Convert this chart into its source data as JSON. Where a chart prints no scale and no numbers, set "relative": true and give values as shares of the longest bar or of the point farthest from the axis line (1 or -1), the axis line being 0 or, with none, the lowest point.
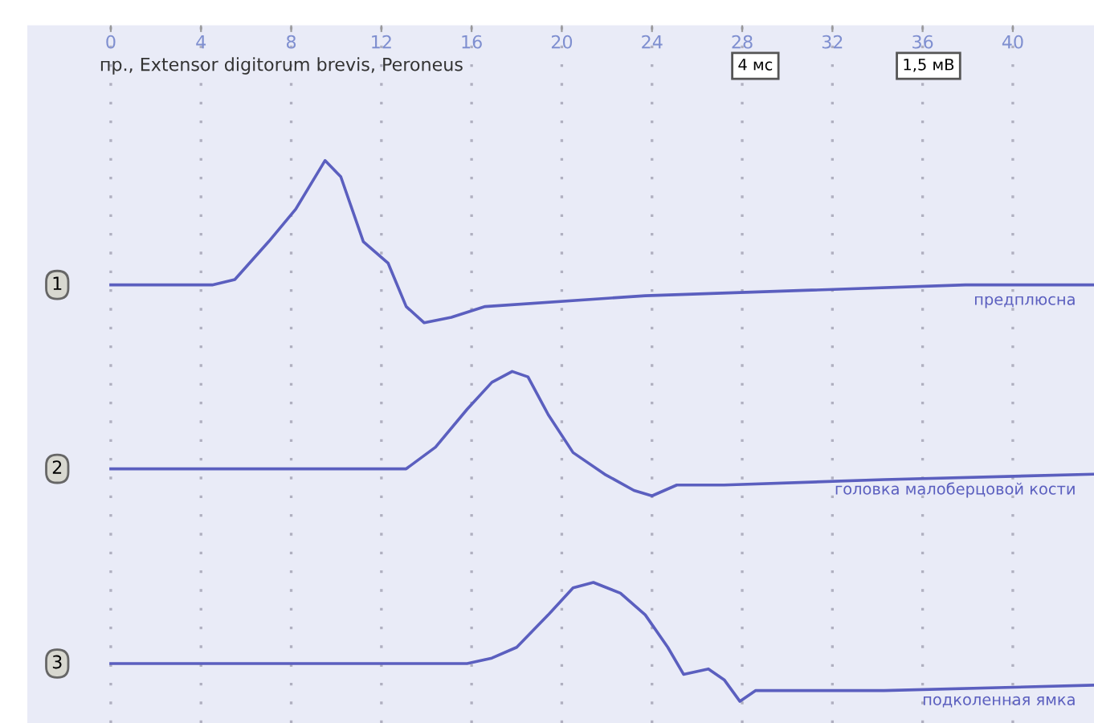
{
  "chart_data": {
    "type": "line",
    "title": "пр., Extensor digitorum brevis, Peroneus",
    "relative": true,
    "xlim": [
      -3.7,
      43.6
    ],
    "xticks": [
      0,
      4,
      8,
      12,
      16,
      20,
      24,
      28,
      32,
      36,
      40
    ],
    "grid": "x",
    "tick_labels": "x",
    "legend": false,
    "line_style": "solid",
    "marker": "none",
    "series": [
      {
        "name": "предплюсна",
        "color": "#5b5fbf",
        "x": [
          0,
          4.5,
          5.5,
          7.0,
          8.2,
          9.5,
          10.2,
          11.2,
          12.3,
          13.1,
          13.9,
          15.1,
          16.6,
          23.7,
          30.8,
          37.9,
          43.6
        ],
        "values": [
          0.77,
          0.77,
          0.78,
          0.85,
          0.91,
          1.0,
          0.97,
          0.85,
          0.81,
          0.73,
          0.7,
          0.71,
          0.73,
          0.75,
          0.76,
          0.77,
          0.77
        ]
      },
      {
        "name": "головка малоберцовой кости",
        "color": "#5b5fbf",
        "x": [
          0,
          11.6,
          13.1,
          14.4,
          15.8,
          16.9,
          17.8,
          18.5,
          19.4,
          20.5,
          21.9,
          23.2,
          24.0,
          25.1,
          27.2,
          34.3,
          43.6
        ],
        "values": [
          0.43,
          0.43,
          0.43,
          0.47,
          0.54,
          0.59,
          0.61,
          0.6,
          0.53,
          0.46,
          0.42,
          0.39,
          0.38,
          0.4,
          0.4,
          0.41,
          0.42
        ]
      },
      {
        "name": "подколенная ямка",
        "color": "#5b5fbf",
        "x": [
          0,
          15.8,
          16.9,
          18.0,
          19.4,
          20.5,
          21.4,
          22.6,
          23.7,
          24.7,
          25.4,
          26.5,
          27.2,
          27.9,
          28.6,
          29.7,
          34.3,
          43.6
        ],
        "values": [
          0.07,
          0.07,
          0.08,
          0.1,
          0.16,
          0.21,
          0.22,
          0.2,
          0.16,
          0.1,
          0.05,
          0.06,
          0.04,
          0.0,
          0.02,
          0.02,
          0.02,
          0.03
        ]
      }
    ],
    "annotations": [
      "1",
      "2",
      "3",
      "4 мс",
      "1,5 мВ"
    ]
  }
}
